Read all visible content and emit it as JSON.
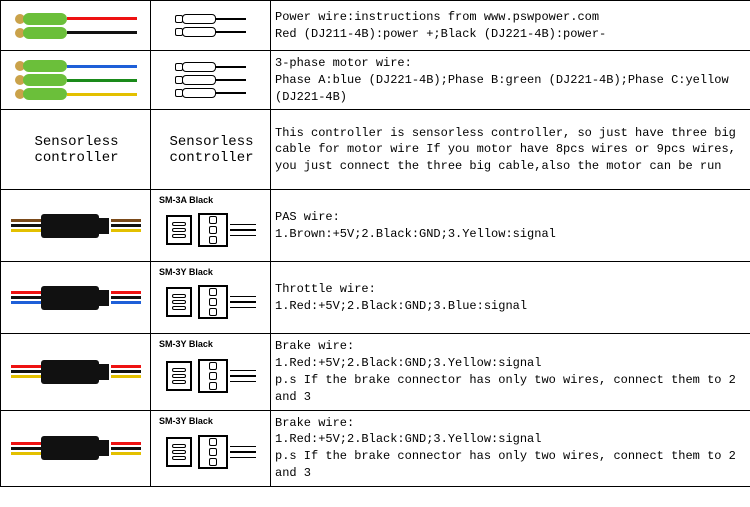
{
  "rows": [
    {
      "id": "power",
      "desc_lines": [
        "Power wire:instructions from www.pswpower.com",
        "Red (DJ211-4B):power +;Black (DJ221-4B):power-"
      ],
      "diagram_label": "",
      "photo": {
        "type": "bullet2",
        "body": "#6bbf3a",
        "tip": "#caa24a",
        "wires": [
          "#e11",
          "#111"
        ]
      },
      "diagram": {
        "type": "bullet2-outline"
      }
    },
    {
      "id": "motor",
      "desc_lines": [
        "3-phase motor wire:",
        "Phase A:blue (DJ221-4B);Phase B:green (DJ221-4B);Phase C:yellow (DJ221-4B)"
      ],
      "diagram_label": "",
      "photo": {
        "type": "bullet3",
        "body": "#6bbf3a",
        "tip": "#caa24a",
        "wires": [
          "#1e5fd8",
          "#1a8a1a",
          "#e3c000"
        ]
      },
      "diagram": {
        "type": "bullet3-outline"
      }
    },
    {
      "id": "sensorless",
      "desc_lines": [
        "This controller is sensorless controller, so just have three big cable for motor wire  If you motor have 8pcs wires or 9pcs wires, you just connect the three big cable,also the motor can be run"
      ],
      "photo_text": "Sensorless controller",
      "diagram_text": "Sensorless controller"
    },
    {
      "id": "pas",
      "desc_lines": [
        "PAS wire:",
        "1.Brown:+5V;2.Black:GND;3.Yellow:signal"
      ],
      "diagram_label": "SM-3A Black",
      "photo": {
        "type": "sm",
        "wires": [
          "#7a4a1a",
          "#111",
          "#e3c000"
        ]
      },
      "diagram": {
        "type": "sm3"
      }
    },
    {
      "id": "throttle",
      "desc_lines": [
        "Throttle wire:",
        "1.Red:+5V;2.Black:GND;3.Blue:signal"
      ],
      "diagram_label": "SM-3Y Black",
      "photo": {
        "type": "sm",
        "wires": [
          "#e11",
          "#111",
          "#1e5fd8"
        ]
      },
      "diagram": {
        "type": "sm3"
      }
    },
    {
      "id": "brake1",
      "desc_lines": [
        "Brake wire:",
        "1.Red:+5V;2.Black:GND;3.Yellow:signal",
        "p.s If the brake connector has only two wires, connect them to 2 and 3"
      ],
      "diagram_label": "SM-3Y Black",
      "photo": {
        "type": "sm",
        "wires": [
          "#e11",
          "#111",
          "#e3c000"
        ]
      },
      "diagram": {
        "type": "sm3"
      }
    },
    {
      "id": "brake2",
      "desc_lines": [
        "Brake wire:",
        "1.Red:+5V;2.Black:GND;3.Yellow:signal",
        "p.s If the brake connector has only two wires, connect them to 2 and 3"
      ],
      "diagram_label": "SM-3Y Black",
      "photo": {
        "type": "sm",
        "wires": [
          "#e11",
          "#111",
          "#e3c000"
        ]
      },
      "diagram": {
        "type": "sm3"
      }
    }
  ]
}
